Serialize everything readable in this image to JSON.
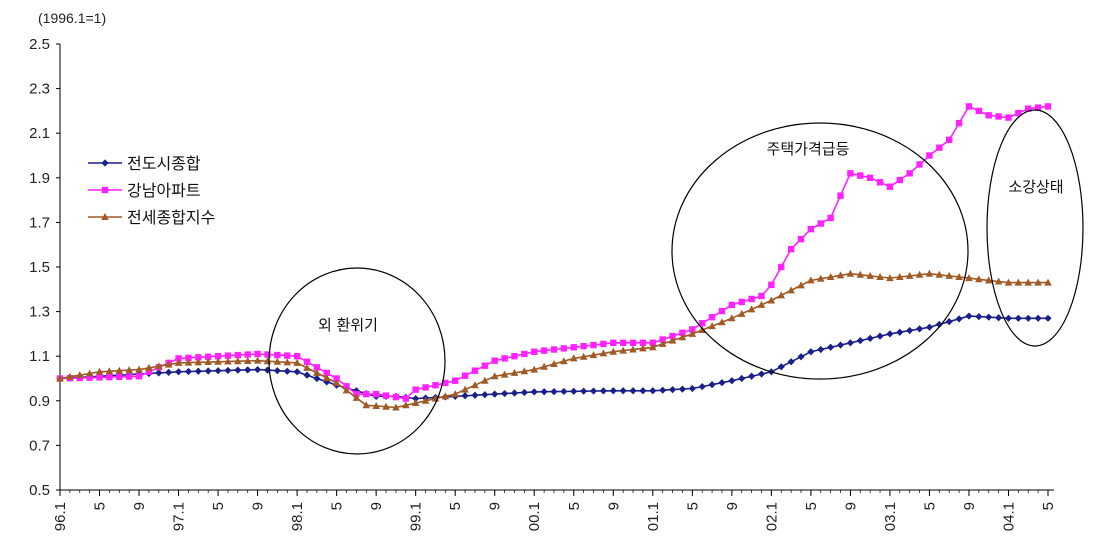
{
  "chart_data": {
    "type": "line",
    "unit_label": "(1996.1=1)",
    "ylim": [
      0.5,
      2.5
    ],
    "yticks": [
      "0.5",
      "0.7",
      "0.9",
      "1.1",
      "1.3",
      "1.5",
      "1.7",
      "1.9",
      "2.1",
      "2.3",
      "2.5"
    ],
    "n_months": 101,
    "xticks": [
      {
        "i": 0,
        "label": "96.1"
      },
      {
        "i": 4,
        "label": "5"
      },
      {
        "i": 8,
        "label": "9"
      },
      {
        "i": 12,
        "label": "97.1"
      },
      {
        "i": 16,
        "label": "5"
      },
      {
        "i": 20,
        "label": "9"
      },
      {
        "i": 24,
        "label": "98.1"
      },
      {
        "i": 28,
        "label": "5"
      },
      {
        "i": 32,
        "label": "9"
      },
      {
        "i": 36,
        "label": "99.1"
      },
      {
        "i": 40,
        "label": "5"
      },
      {
        "i": 44,
        "label": "9"
      },
      {
        "i": 48,
        "label": "00.1"
      },
      {
        "i": 52,
        "label": "5"
      },
      {
        "i": 56,
        "label": "9"
      },
      {
        "i": 60,
        "label": "01.1"
      },
      {
        "i": 64,
        "label": "5"
      },
      {
        "i": 68,
        "label": "9"
      },
      {
        "i": 72,
        "label": "02.1"
      },
      {
        "i": 76,
        "label": "5"
      },
      {
        "i": 80,
        "label": "9"
      },
      {
        "i": 84,
        "label": "03.1"
      },
      {
        "i": 88,
        "label": "5"
      },
      {
        "i": 92,
        "label": "9"
      },
      {
        "i": 96,
        "label": "04.1"
      },
      {
        "i": 100,
        "label": "5"
      }
    ],
    "series": [
      {
        "name": "전도시종합",
        "color": "#1a1f8a",
        "marker": "diamond",
        "anchors": [
          [
            0,
            1.0
          ],
          [
            12,
            1.03
          ],
          [
            20,
            1.04
          ],
          [
            24,
            1.03
          ],
          [
            28,
            0.97
          ],
          [
            32,
            0.92
          ],
          [
            34,
            0.92
          ],
          [
            36,
            0.91
          ],
          [
            40,
            0.92
          ],
          [
            48,
            0.94
          ],
          [
            56,
            0.945
          ],
          [
            60,
            0.945
          ],
          [
            64,
            0.955
          ],
          [
            68,
            0.99
          ],
          [
            72,
            1.03
          ],
          [
            76,
            1.12
          ],
          [
            80,
            1.16
          ],
          [
            84,
            1.2
          ],
          [
            88,
            1.23
          ],
          [
            92,
            1.28
          ],
          [
            96,
            1.27
          ],
          [
            100,
            1.27
          ]
        ]
      },
      {
        "name": "강남아파트",
        "color": "#ff22ff",
        "marker": "square",
        "anchors": [
          [
            0,
            1.0
          ],
          [
            8,
            1.01
          ],
          [
            12,
            1.09
          ],
          [
            20,
            1.11
          ],
          [
            24,
            1.1
          ],
          [
            28,
            1.0
          ],
          [
            30,
            0.93
          ],
          [
            32,
            0.93
          ],
          [
            35,
            0.91
          ],
          [
            36,
            0.95
          ],
          [
            40,
            0.99
          ],
          [
            44,
            1.08
          ],
          [
            48,
            1.12
          ],
          [
            52,
            1.14
          ],
          [
            56,
            1.16
          ],
          [
            60,
            1.16
          ],
          [
            64,
            1.22
          ],
          [
            68,
            1.33
          ],
          [
            71,
            1.37
          ],
          [
            72,
            1.42
          ],
          [
            74,
            1.58
          ],
          [
            76,
            1.67
          ],
          [
            78,
            1.72
          ],
          [
            80,
            1.92
          ],
          [
            82,
            1.9
          ],
          [
            84,
            1.86
          ],
          [
            86,
            1.92
          ],
          [
            88,
            2.0
          ],
          [
            90,
            2.07
          ],
          [
            92,
            2.22
          ],
          [
            94,
            2.18
          ],
          [
            96,
            2.17
          ],
          [
            98,
            2.21
          ],
          [
            100,
            2.22
          ]
        ]
      },
      {
        "name": "전세종합지수",
        "color": "#a05a25",
        "marker": "triangle",
        "anchors": [
          [
            0,
            1.0
          ],
          [
            4,
            1.03
          ],
          [
            8,
            1.04
          ],
          [
            12,
            1.07
          ],
          [
            20,
            1.08
          ],
          [
            24,
            1.07
          ],
          [
            28,
            0.98
          ],
          [
            31,
            0.88
          ],
          [
            34,
            0.87
          ],
          [
            36,
            0.89
          ],
          [
            40,
            0.93
          ],
          [
            44,
            1.01
          ],
          [
            48,
            1.04
          ],
          [
            52,
            1.09
          ],
          [
            56,
            1.12
          ],
          [
            60,
            1.14
          ],
          [
            64,
            1.2
          ],
          [
            68,
            1.27
          ],
          [
            72,
            1.35
          ],
          [
            76,
            1.44
          ],
          [
            80,
            1.47
          ],
          [
            84,
            1.45
          ],
          [
            88,
            1.47
          ],
          [
            92,
            1.45
          ],
          [
            96,
            1.43
          ],
          [
            100,
            1.43
          ]
        ]
      }
    ],
    "annotations": [
      {
        "label": "외 환위기"
      },
      {
        "label": "주택가격급등"
      },
      {
        "label": "소강상태"
      }
    ],
    "legend": "left"
  }
}
